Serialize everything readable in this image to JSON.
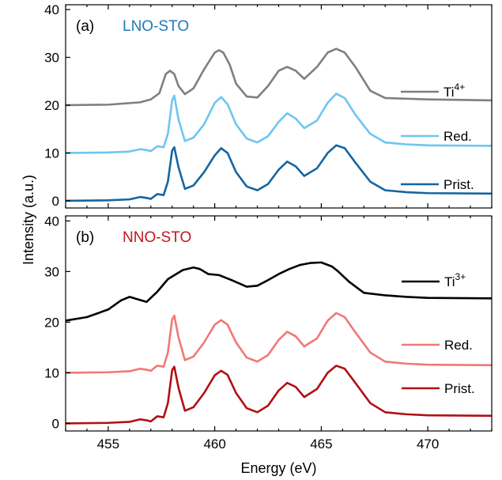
{
  "chart_data": [
    {
      "type": "line",
      "panel_label": "(a)",
      "title": "LNO-STO",
      "title_color": "#1f7bb5",
      "xlim": [
        453,
        473
      ],
      "ylim": [
        -1.5,
        41
      ],
      "yticks": [
        0,
        10,
        20,
        30,
        40
      ],
      "xticks": [
        455,
        460,
        465,
        470
      ],
      "series": [
        {
          "name": "Ti",
          "superscript": "4+",
          "color": "#7f7f7f",
          "x": [
            453,
            455,
            456.5,
            457.0,
            457.4,
            457.7,
            457.9,
            458.1,
            458.3,
            458.6,
            459.0,
            459.5,
            460.0,
            460.2,
            460.4,
            460.7,
            461.0,
            461.5,
            462.0,
            462.5,
            463.0,
            463.4,
            463.8,
            464.2,
            464.8,
            465.3,
            465.7,
            466.1,
            466.6,
            467.3,
            468.0,
            470,
            473
          ],
          "y": [
            20,
            20.1,
            20.6,
            21.2,
            22.5,
            26.5,
            27.2,
            26.5,
            24,
            22.3,
            23.5,
            27.5,
            31,
            31.5,
            31,
            28.5,
            24.5,
            21.8,
            21.6,
            24,
            27.2,
            28,
            27.2,
            25.5,
            28,
            31,
            31.8,
            31,
            28,
            23,
            21.5,
            21.2,
            21
          ]
        },
        {
          "name": "Red.",
          "color": "#6ec6f0",
          "x": [
            453,
            455,
            456.0,
            456.5,
            456.8,
            457.0,
            457.3,
            457.6,
            457.8,
            458.0,
            458.1,
            458.3,
            458.6,
            459.0,
            459.5,
            460.0,
            460.3,
            460.6,
            461.0,
            461.5,
            462.0,
            462.5,
            463.0,
            463.4,
            463.8,
            464.2,
            464.8,
            465.3,
            465.7,
            466.1,
            466.6,
            467.3,
            468.0,
            469,
            470,
            473
          ],
          "y": [
            10,
            10.1,
            10.3,
            10.8,
            10.6,
            10.4,
            11.4,
            11.2,
            14,
            21,
            22,
            17,
            12.5,
            13.2,
            16,
            20.5,
            21.7,
            20.2,
            16,
            13,
            12.2,
            13.5,
            16.5,
            18.3,
            17.2,
            15.2,
            16.8,
            20.5,
            22.4,
            21.5,
            18,
            14,
            12.2,
            11.8,
            11.6,
            11.5
          ]
        },
        {
          "name": "Prist.",
          "color": "#1565a0",
          "x": [
            453,
            455,
            456.0,
            456.5,
            456.8,
            457.0,
            457.3,
            457.6,
            457.8,
            458.0,
            458.1,
            458.3,
            458.6,
            459.0,
            459.5,
            460.0,
            460.3,
            460.6,
            461.0,
            461.5,
            462.0,
            462.5,
            463.0,
            463.4,
            463.8,
            464.2,
            464.8,
            465.3,
            465.7,
            466.1,
            466.6,
            467.3,
            468.0,
            469,
            470,
            473
          ],
          "y": [
            0,
            0.1,
            0.3,
            0.8,
            0.6,
            0.4,
            1.4,
            1.2,
            4,
            10.5,
            11.2,
            7,
            2.5,
            3.2,
            6,
            9.5,
            11,
            10,
            6,
            3,
            2.2,
            3.5,
            6.5,
            8.2,
            7.2,
            5.2,
            6.8,
            10,
            11.6,
            11,
            8,
            4,
            2.2,
            1.8,
            1.6,
            1.5
          ]
        }
      ]
    },
    {
      "type": "line",
      "panel_label": "(b)",
      "title": "NNO-STO",
      "title_color": "#c0191e",
      "xlabel": "Energy (eV)",
      "ylabel": "Intensity (a.u.)",
      "xlim": [
        453,
        473
      ],
      "ylim": [
        -1.5,
        41
      ],
      "yticks": [
        0,
        10,
        20,
        30,
        40
      ],
      "xticks": [
        455,
        460,
        465,
        470
      ],
      "series": [
        {
          "name": "Ti",
          "superscript": "3+",
          "color": "#000000",
          "x": [
            453,
            454.0,
            455.0,
            455.6,
            456.0,
            456.4,
            456.8,
            457.3,
            457.8,
            458.5,
            459.0,
            459.3,
            459.7,
            460.2,
            460.8,
            461.5,
            462.0,
            462.5,
            463.0,
            463.5,
            464.0,
            464.5,
            465.0,
            465.5,
            465.8,
            466.3,
            467.0,
            468.0,
            469,
            470,
            473
          ],
          "y": [
            20.3,
            21.0,
            22.5,
            24.3,
            25.0,
            24.5,
            24.0,
            26.0,
            28.5,
            30.3,
            30.8,
            30.5,
            29.5,
            29.3,
            28.3,
            27.0,
            27.2,
            28.3,
            29.5,
            30.5,
            31.3,
            31.7,
            31.8,
            31.0,
            30.0,
            28.0,
            25.8,
            25.3,
            25.0,
            24.8,
            24.7
          ]
        },
        {
          "name": "Red.",
          "color": "#f07878",
          "x": [
            453,
            455,
            456.0,
            456.5,
            456.8,
            457.0,
            457.3,
            457.6,
            457.8,
            458.0,
            458.1,
            458.3,
            458.6,
            459.0,
            459.5,
            460.0,
            460.3,
            460.6,
            461.0,
            461.5,
            462.0,
            462.5,
            463.0,
            463.4,
            463.8,
            464.2,
            464.8,
            465.3,
            465.7,
            466.1,
            466.6,
            467.3,
            468.0,
            469,
            470,
            473
          ],
          "y": [
            10,
            10.1,
            10.3,
            10.8,
            10.6,
            10.4,
            11.4,
            11.2,
            14,
            20.5,
            21.3,
            17,
            12.5,
            13.2,
            16,
            19.5,
            20.4,
            19.5,
            16,
            13,
            12.2,
            13.5,
            16.5,
            18.1,
            17.2,
            15.2,
            16.8,
            20.3,
            21.8,
            21,
            18,
            14,
            12.2,
            11.8,
            11.6,
            11.5
          ]
        },
        {
          "name": "Prist.",
          "color": "#b01015",
          "x": [
            453,
            455,
            456.0,
            456.5,
            456.8,
            457.0,
            457.3,
            457.6,
            457.8,
            458.0,
            458.1,
            458.3,
            458.6,
            459.0,
            459.5,
            460.0,
            460.3,
            460.6,
            461.0,
            461.5,
            462.0,
            462.5,
            463.0,
            463.4,
            463.8,
            464.2,
            464.8,
            465.3,
            465.7,
            466.1,
            466.6,
            467.3,
            468.0,
            469,
            470,
            473
          ],
          "y": [
            0,
            0.1,
            0.3,
            0.8,
            0.6,
            0.4,
            1.4,
            1.2,
            4,
            10.5,
            11.2,
            7,
            2.5,
            3.2,
            6,
            9.5,
            10.4,
            9.6,
            6,
            3,
            2.2,
            3.5,
            6.5,
            8.0,
            7.2,
            5.2,
            6.8,
            10,
            11.4,
            10.8,
            8,
            4,
            2.2,
            1.8,
            1.6,
            1.5
          ]
        }
      ]
    }
  ]
}
